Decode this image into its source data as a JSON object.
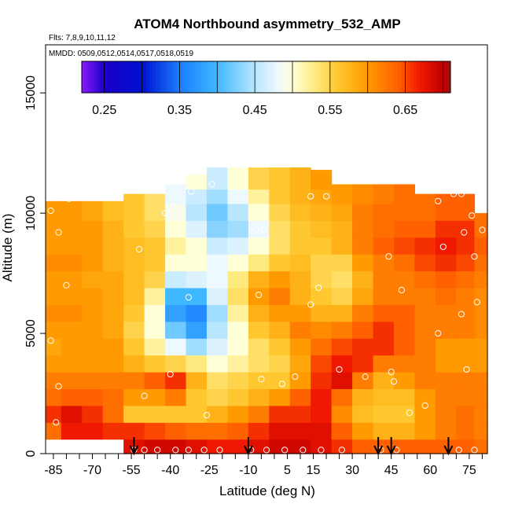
{
  "chart_data": {
    "type": "heatmap",
    "title": "ATOM4 Northbound asymmetry_532_AMP",
    "subtitle_flights": "Flts: 7,8,9,10,11,12",
    "subtitle_dates": "MMDD: 0509,0512,0514,0517,0518,0519",
    "xlabel": "Latitude (deg N)",
    "ylabel": "Altitude (m)",
    "xlim": [
      -88,
      82
    ],
    "ylim": [
      0,
      17000
    ],
    "x_ticks": [
      -85,
      -70,
      -55,
      -40,
      -25,
      -10,
      5,
      15,
      30,
      45,
      60,
      75
    ],
    "x_tick_labels": [
      "-85",
      "-70",
      "-55",
      "-40",
      "-25",
      "-10",
      "5",
      "15",
      "30",
      "45",
      "60",
      "75"
    ],
    "y_ticks": [
      0,
      5000,
      10000,
      15000
    ],
    "y_tick_labels": [
      "0",
      "5000",
      "10000",
      "15000"
    ],
    "colorbar": {
      "min": 0.22,
      "max": 0.71,
      "ticks": [
        0.25,
        0.35,
        0.45,
        0.55,
        0.65
      ],
      "tick_labels": [
        "0.25",
        "0.35",
        "0.45",
        "0.55",
        "0.65"
      ],
      "breaks": [
        0.22,
        0.25,
        0.3,
        0.35,
        0.4,
        0.45,
        0.5,
        0.55,
        0.6,
        0.65,
        0.7,
        0.71
      ],
      "colors": [
        "#7b00ff",
        "#0000c8",
        "#1f6dff",
        "#00b3ff",
        "#bde8ff",
        "#ffffd4",
        "#ffd24a",
        "#ff9c00",
        "#ff4d00",
        "#d80000",
        "#9a1414"
      ]
    },
    "colorscale_stops": [
      [
        0.22,
        "#8c1aff"
      ],
      [
        0.25,
        "#1a00c8"
      ],
      [
        0.3,
        "#0010d0"
      ],
      [
        0.35,
        "#1a7dff"
      ],
      [
        0.4,
        "#40b8ff"
      ],
      [
        0.45,
        "#b8e6ff"
      ],
      [
        0.48,
        "#eef8ff"
      ],
      [
        0.5,
        "#ffffd8"
      ],
      [
        0.53,
        "#ffea80"
      ],
      [
        0.56,
        "#ffc830"
      ],
      [
        0.6,
        "#ff9a00"
      ],
      [
        0.64,
        "#ff6000"
      ],
      [
        0.67,
        "#f01800"
      ],
      [
        0.7,
        "#c00000"
      ],
      [
        0.71,
        "#a01010"
      ]
    ],
    "altitude_bins_m": [
      600,
      1300,
      2000,
      2700,
      3400,
      4100,
      4800,
      5500,
      6200,
      6900,
      7600,
      8300,
      9000,
      9700,
      10400,
      11000,
      11600
    ],
    "profiles": [
      {
        "lat": -86,
        "alt_range": [
          1300,
          10500
        ],
        "values": [
          0.62,
          0.63,
          0.66,
          0.63,
          0.62,
          0.6,
          0.59,
          0.6,
          0.61,
          0.6,
          0.6,
          0.61,
          0.6,
          0.6,
          0.6
        ]
      },
      {
        "lat": -78,
        "alt_range": [
          1300,
          10500
        ],
        "values": [
          0.66,
          0.67,
          0.68,
          0.64,
          0.62,
          0.6,
          0.6,
          0.6,
          0.61,
          0.6,
          0.6,
          0.61,
          0.6,
          0.6,
          0.6
        ]
      },
      {
        "lat": -70,
        "alt_range": [
          1300,
          10500
        ],
        "values": [
          0.66,
          0.67,
          0.66,
          0.64,
          0.62,
          0.6,
          0.6,
          0.6,
          0.6,
          0.6,
          0.59,
          0.6,
          0.6,
          0.6,
          0.59
        ]
      },
      {
        "lat": -62,
        "alt_range": [
          1300,
          10500
        ],
        "values": [
          0.67,
          0.66,
          0.63,
          0.63,
          0.62,
          0.6,
          0.6,
          0.59,
          0.59,
          0.59,
          0.59,
          0.58,
          0.58,
          0.58,
          0.57
        ]
      },
      {
        "lat": -54,
        "alt_range": [
          0,
          10800
        ],
        "values": [
          0.68,
          0.66,
          0.56,
          0.6,
          0.62,
          0.58,
          0.56,
          0.55,
          0.56,
          0.57,
          0.57,
          0.57,
          0.57,
          0.56,
          0.56
        ]
      },
      {
        "lat": -46,
        "alt_range": [
          0,
          10800
        ],
        "values": [
          0.69,
          0.65,
          0.56,
          0.6,
          0.64,
          0.56,
          0.52,
          0.5,
          0.5,
          0.52,
          0.55,
          0.56,
          0.56,
          0.55,
          0.54
        ]
      },
      {
        "lat": -38,
        "alt_range": [
          0,
          11200
        ],
        "values": [
          0.69,
          0.64,
          0.56,
          0.62,
          0.66,
          0.55,
          0.48,
          0.42,
          0.38,
          0.4,
          0.46,
          0.5,
          0.52,
          0.5,
          0.49,
          0.48
        ]
      },
      {
        "lat": -30,
        "alt_range": [
          0,
          11600
        ],
        "values": [
          0.68,
          0.63,
          0.56,
          0.56,
          0.58,
          0.53,
          0.44,
          0.38,
          0.36,
          0.4,
          0.47,
          0.5,
          0.5,
          0.47,
          0.45,
          0.46,
          0.5
        ]
      },
      {
        "lat": -22,
        "alt_range": [
          0,
          11900
        ],
        "values": [
          0.67,
          0.63,
          0.58,
          0.55,
          0.54,
          0.5,
          0.47,
          0.45,
          0.44,
          0.47,
          0.48,
          0.48,
          0.46,
          0.43,
          0.42,
          0.44,
          0.46
        ]
      },
      {
        "lat": -14,
        "alt_range": [
          0,
          11900
        ],
        "values": [
          0.67,
          0.64,
          0.6,
          0.56,
          0.55,
          0.52,
          0.5,
          0.5,
          0.52,
          0.54,
          0.53,
          0.5,
          0.47,
          0.44,
          0.45,
          0.48,
          0.5
        ]
      },
      {
        "lat": -6,
        "alt_range": [
          0,
          11900
        ],
        "values": [
          0.68,
          0.66,
          0.62,
          0.58,
          0.56,
          0.54,
          0.54,
          0.56,
          0.58,
          0.6,
          0.58,
          0.53,
          0.5,
          0.48,
          0.5,
          0.52,
          0.55
        ]
      },
      {
        "lat": 2,
        "alt_range": [
          0,
          11900
        ],
        "values": [
          0.69,
          0.68,
          0.66,
          0.6,
          0.56,
          0.55,
          0.56,
          0.58,
          0.6,
          0.62,
          0.6,
          0.56,
          0.54,
          0.54,
          0.55,
          0.56,
          0.56
        ]
      },
      {
        "lat": 10,
        "alt_range": [
          0,
          11900
        ],
        "values": [
          0.69,
          0.68,
          0.66,
          0.64,
          0.6,
          0.59,
          0.6,
          0.62,
          0.6,
          0.58,
          0.58,
          0.57,
          0.56,
          0.56,
          0.57,
          0.58,
          0.58
        ]
      },
      {
        "lat": 18,
        "alt_range": [
          0,
          11800
        ],
        "values": [
          0.68,
          0.68,
          0.67,
          0.67,
          0.66,
          0.65,
          0.63,
          0.61,
          0.58,
          0.56,
          0.55,
          0.55,
          0.56,
          0.57,
          0.58,
          0.59,
          0.6
        ]
      },
      {
        "lat": 26,
        "alt_range": [
          0,
          11200
        ],
        "values": [
          0.66,
          0.64,
          0.61,
          0.63,
          0.68,
          0.67,
          0.65,
          0.62,
          0.58,
          0.55,
          0.54,
          0.55,
          0.58,
          0.58,
          0.59,
          0.6
        ]
      },
      {
        "lat": 34,
        "alt_range": [
          0,
          11200
        ],
        "values": [
          0.64,
          0.6,
          0.57,
          0.58,
          0.62,
          0.66,
          0.66,
          0.64,
          0.62,
          0.59,
          0.58,
          0.6,
          0.62,
          0.62,
          0.62,
          0.61
        ]
      },
      {
        "lat": 42,
        "alt_range": [
          0,
          11200
        ],
        "values": [
          0.64,
          0.58,
          0.56,
          0.57,
          0.58,
          0.62,
          0.66,
          0.66,
          0.64,
          0.62,
          0.62,
          0.62,
          0.64,
          0.63,
          0.63,
          0.62
        ]
      },
      {
        "lat": 50,
        "alt_range": [
          0,
          11200
        ],
        "values": [
          0.64,
          0.58,
          0.56,
          0.57,
          0.6,
          0.62,
          0.64,
          0.64,
          0.64,
          0.62,
          0.62,
          0.63,
          0.65,
          0.64,
          0.63,
          0.63
        ]
      },
      {
        "lat": 58,
        "alt_range": [
          0,
          10800
        ],
        "values": [
          0.64,
          0.6,
          0.6,
          0.6,
          0.62,
          0.62,
          0.62,
          0.62,
          0.62,
          0.62,
          0.63,
          0.65,
          0.66,
          0.64,
          0.63
        ]
      },
      {
        "lat": 66,
        "alt_range": [
          0,
          10800
        ],
        "values": [
          0.64,
          0.62,
          0.62,
          0.62,
          0.62,
          0.6,
          0.6,
          0.62,
          0.62,
          0.63,
          0.64,
          0.66,
          0.67,
          0.66,
          0.64
        ]
      },
      {
        "lat": 74,
        "alt_range": [
          0,
          10800
        ],
        "values": [
          0.64,
          0.63,
          0.63,
          0.62,
          0.62,
          0.6,
          0.6,
          0.62,
          0.62,
          0.62,
          0.63,
          0.65,
          0.66,
          0.66,
          0.64
        ]
      },
      {
        "lat": 80,
        "alt_range": [
          0,
          10000
        ],
        "values": [
          0.63,
          0.62,
          0.62,
          0.62,
          0.62,
          0.6,
          0.6,
          0.61,
          0.61,
          0.61,
          0.62,
          0.63,
          0.64,
          0.63
        ]
      }
    ],
    "sample_points": [
      {
        "lat": -54,
        "alt": 150
      },
      {
        "lat": -50,
        "alt": 150
      },
      {
        "lat": -45,
        "alt": 150
      },
      {
        "lat": -38,
        "alt": 150
      },
      {
        "lat": -33,
        "alt": 150
      },
      {
        "lat": -27,
        "alt": 150
      },
      {
        "lat": -21,
        "alt": 150
      },
      {
        "lat": -9,
        "alt": 150
      },
      {
        "lat": -3,
        "alt": 150
      },
      {
        "lat": 4,
        "alt": 150
      },
      {
        "lat": 11,
        "alt": 150
      },
      {
        "lat": 18,
        "alt": 150
      },
      {
        "lat": 26,
        "alt": 150
      },
      {
        "lat": 41,
        "alt": 150
      },
      {
        "lat": 47,
        "alt": 150
      },
      {
        "lat": 71,
        "alt": 150
      },
      {
        "lat": 77,
        "alt": 150
      },
      {
        "lat": -86,
        "alt": 10100
      },
      {
        "lat": -83,
        "alt": 9200
      },
      {
        "lat": -79,
        "alt": 10600
      },
      {
        "lat": -80,
        "alt": 7000
      },
      {
        "lat": -86,
        "alt": 4700
      },
      {
        "lat": -83,
        "alt": 2800
      },
      {
        "lat": -84,
        "alt": 1300
      },
      {
        "lat": -52,
        "alt": 8500
      },
      {
        "lat": -42,
        "alt": 10000
      },
      {
        "lat": -39,
        "alt": 10300
      },
      {
        "lat": -32,
        "alt": 10900
      },
      {
        "lat": -24,
        "alt": 11200
      },
      {
        "lat": -33,
        "alt": 6500
      },
      {
        "lat": -40,
        "alt": 3300
      },
      {
        "lat": -26,
        "alt": 1600
      },
      {
        "lat": -50,
        "alt": 2400
      },
      {
        "lat": -7,
        "alt": 9300
      },
      {
        "lat": -4,
        "alt": 9300
      },
      {
        "lat": -6,
        "alt": 6600
      },
      {
        "lat": -5,
        "alt": 3100
      },
      {
        "lat": 3,
        "alt": 2900
      },
      {
        "lat": 8,
        "alt": 3200
      },
      {
        "lat": 14,
        "alt": 6200
      },
      {
        "lat": 17,
        "alt": 6900
      },
      {
        "lat": 14,
        "alt": 10700
      },
      {
        "lat": 20,
        "alt": 10700
      },
      {
        "lat": 25,
        "alt": 3500
      },
      {
        "lat": 35,
        "alt": 3200
      },
      {
        "lat": 44,
        "alt": 8200
      },
      {
        "lat": 49,
        "alt": 6800
      },
      {
        "lat": 45,
        "alt": 3400
      },
      {
        "lat": 46,
        "alt": 3000
      },
      {
        "lat": 52,
        "alt": 1700
      },
      {
        "lat": 58,
        "alt": 2000
      },
      {
        "lat": 58,
        "alt": 11100
      },
      {
        "lat": 63,
        "alt": 10500
      },
      {
        "lat": 65,
        "alt": 8600
      },
      {
        "lat": 69,
        "alt": 10800
      },
      {
        "lat": 72,
        "alt": 10800
      },
      {
        "lat": 76,
        "alt": 9900
      },
      {
        "lat": 73,
        "alt": 9200
      },
      {
        "lat": 77,
        "alt": 8200
      },
      {
        "lat": 80,
        "alt": 9300
      },
      {
        "lat": 78,
        "alt": 6300
      },
      {
        "lat": 72,
        "alt": 5800
      },
      {
        "lat": 63,
        "alt": 5000
      },
      {
        "lat": 74,
        "alt": 3500
      }
    ],
    "arrow_latitudes": [
      -54,
      -10,
      40,
      45,
      67
    ]
  }
}
